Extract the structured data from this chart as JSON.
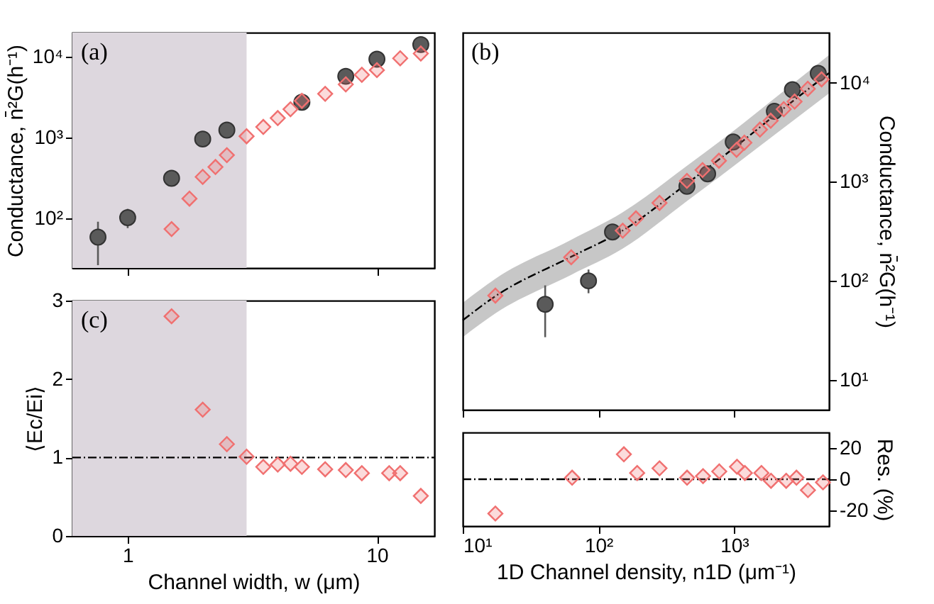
{
  "chart_data": [
    {
      "type": "scatter",
      "ylabel": "Conductance, n̄²G(h⁻¹)",
      "annotations": [
        "(a)"
      ],
      "log": "xy",
      "tick_labels": "y",
      "xlim": [
        0.6,
        17
      ],
      "xticks": [
        1,
        10
      ],
      "ylim": [
        24,
        20000
      ],
      "yticks": [
        {
          "value": 100,
          "label": "10²"
        },
        {
          "value": 1000,
          "label": "10³"
        },
        {
          "value": 10000,
          "label": "10⁴"
        }
      ],
      "bands": [
        {
          "axis": "x",
          "from": 0.6,
          "to": 3,
          "color": "#ddd7de"
        }
      ],
      "series": [
        {
          "marker": "circle",
          "color": "#5a5a5a",
          "x": [
            0.76,
            1,
            1.5,
            2,
            2.5,
            5,
            7.5,
            10,
            15
          ],
          "values": [
            58,
            101,
            311,
            955,
            1233,
            2737,
            5740,
            9350,
            14200
          ],
          "errors": [
            [
              26,
              90
            ],
            [
              75,
              130
            ],
            null,
            null,
            null,
            null,
            [
              4900,
              6600
            ],
            null,
            null
          ]
        },
        {
          "marker": "diamond",
          "color": "#f07070",
          "x": [
            1.5,
            1.77,
            2,
            2.25,
            2.5,
            3,
            3.5,
            4,
            4.5,
            5,
            6.2,
            7.5,
            8.7,
            10,
            12.4,
            15
          ],
          "values": [
            73,
            174,
            324,
            430,
            603,
            1035,
            1350,
            1740,
            2240,
            2850,
            3480,
            4560,
            5990,
            6850,
            9600,
            11000
          ]
        }
      ]
    },
    {
      "type": "scatter",
      "ylabel": "⟨Ec/Ei⟩",
      "xlabel": "Channel width, w (μm)",
      "annotations": [
        "(c)"
      ],
      "log": "x",
      "xlim": [
        0.6,
        17
      ],
      "xticks": [
        1,
        10
      ],
      "ylim": [
        0,
        3
      ],
      "yticks": [
        0,
        1,
        2,
        3
      ],
      "bands": [
        {
          "axis": "x",
          "from": 0.6,
          "to": 3,
          "color": "#ddd7de"
        }
      ],
      "ref_lines": [
        {
          "axis": "y",
          "value": 1,
          "label": null,
          "line_style": "dashed",
          "color": "#000000"
        }
      ],
      "series": [
        {
          "marker": "diamond",
          "color": "#f07070",
          "x": [
            1.5,
            2,
            2.5,
            3,
            3.5,
            4,
            4.5,
            5,
            6.2,
            7.5,
            8.7,
            11.2,
            12.4,
            15
          ],
          "values": [
            2.8,
            1.61,
            1.17,
            1.01,
            0.88,
            0.91,
            0.92,
            0.88,
            0.85,
            0.84,
            0.8,
            0.8,
            0.8,
            0.51
          ]
        }
      ]
    },
    {
      "type": "scatter",
      "ylabel": "Conductance, n̄²G(h⁻¹)",
      "annotations": [
        "(b)"
      ],
      "log": "xy",
      "tick_labels": "y",
      "xlim": [
        10,
        5000
      ],
      "xticks": [
        10,
        100,
        1000
      ],
      "ylim": [
        5,
        32000
      ],
      "yticks": [
        {
          "value": 10,
          "label": "10¹"
        },
        {
          "value": 100,
          "label": "10²"
        },
        {
          "value": 1000,
          "label": "10³"
        },
        {
          "value": 10000,
          "label": "10⁴"
        }
      ],
      "series": [
        {
          "type": "line",
          "line_style": "dashed",
          "color": "#000000",
          "x": [
            10,
            17.4,
            63,
            150,
            450,
            1000,
            2000,
            5000
          ],
          "values": [
            40,
            70,
            175,
            320,
            960,
            2200,
            4700,
            12500
          ],
          "lower": [
            27,
            47,
            115,
            210,
            640,
            1450,
            3000,
            7800
          ],
          "upper": [
            60,
            105,
            260,
            490,
            1450,
            3300,
            7000,
            19000
          ]
        },
        {
          "marker": "circle",
          "color": "#5a5a5a",
          "x": [
            40.5,
            84.5,
            127,
            449,
            638,
            985,
            1980,
            2690,
            4170
          ],
          "values": [
            58,
            100,
            311,
            900,
            1200,
            2520,
            5140,
            8500,
            12400
          ],
          "errors": [
            [
              27,
              90
            ],
            [
              75,
              130
            ],
            null,
            null,
            null,
            null,
            null,
            null,
            null
          ]
        },
        {
          "marker": "diamond",
          "color": "#f07070",
          "x": [
            17.4,
            63,
            151,
            189,
            282,
            449,
            585,
            773,
            1042,
            1190,
            1550,
            1860,
            2320,
            2790,
            3490,
            4410
          ],
          "values": [
            71,
            173,
            321,
            427,
            612,
            1020,
            1313,
            1630,
            2100,
            2480,
            3360,
            4130,
            5400,
            6450,
            8670,
            10800
          ]
        }
      ]
    },
    {
      "type": "scatter",
      "ylabel": "Res. (%)",
      "xlabel": "1D Channel density, n1D (μm⁻¹)",
      "log": "x",
      "xlim": [
        10,
        5000
      ],
      "xticks": [
        {
          "value": 10,
          "label": "10¹"
        },
        {
          "value": 100,
          "label": "10²"
        },
        {
          "value": 1000,
          "label": "10³"
        }
      ],
      "ylim": [
        -30,
        30
      ],
      "yticks": [
        -20,
        0,
        20
      ],
      "ref_lines": [
        {
          "axis": "y",
          "value": 0,
          "label": null,
          "line_style": "dashed",
          "color": "#000000"
        }
      ],
      "series": [
        {
          "marker": "diamond",
          "color": "#f07070",
          "x": [
            17.4,
            64,
            154,
            193,
            282,
            450,
            590,
            777,
            1050,
            1200,
            1590,
            1870,
            2420,
            2880,
            3500,
            4520
          ],
          "values": [
            -22,
            1,
            16,
            4,
            7,
            1,
            2,
            5,
            8,
            4,
            4,
            -1,
            -1,
            1,
            -7,
            -2
          ]
        }
      ]
    }
  ]
}
